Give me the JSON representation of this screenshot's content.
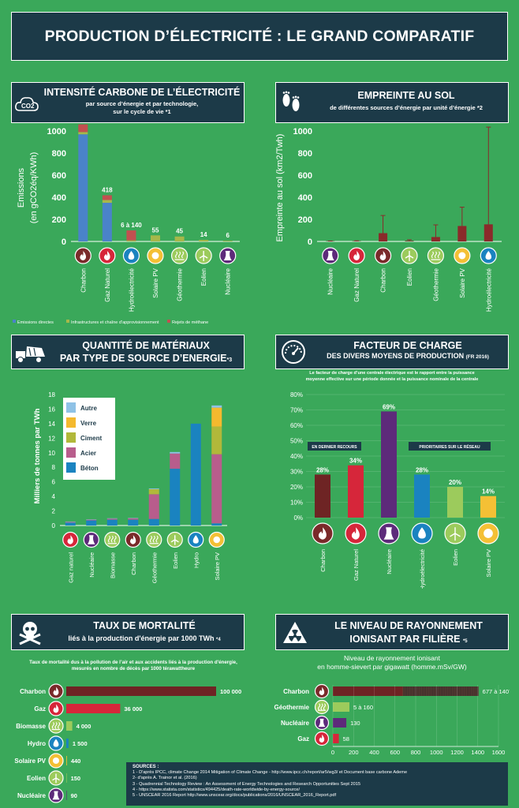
{
  "title": "PRODUCTION D’ÉLECTRICITÉ : LE GRAND COMPARATIF",
  "colors": {
    "background": "#3aa85a",
    "banner": "#1c3a48",
    "charbon": "#7a2a2a",
    "gaz": "#d6263a",
    "nucleaire": "#5d2a7a",
    "hydro": "#1a83c0",
    "solaire": "#f4c035",
    "eolien": "#9ccb5c",
    "geothermie": "#9ccb5c",
    "biomasse": "#9ccb5c"
  },
  "carbon": {
    "title": "INTENSITÉ CARBONE DE L’ÉLECTRICITÉ",
    "subtitle": "par source d’énergie et par technologie,",
    "subtitle2": "sur le cycle de vie *1",
    "icon": "co2-icon",
    "icon_text": "CO2",
    "ylabel": "Emissions",
    "ylabel2": "(en gCO2éq/KWh)",
    "legend": [
      "Emissions directes",
      "Infrastructures et chaîne d’approvisionnement",
      "Rejets de méthane"
    ]
  },
  "footprint": {
    "title": "EMPREINTE AU SOL",
    "subtitle": "de différentes sources d’énergie par unité d’énergie *2",
    "icon": "footprints-icon",
    "ylabel": "Empreinte au sol (km2/Twh)"
  },
  "materials": {
    "title": "QUANTITÉ DE MATÉRIAUX",
    "title2": "PAR TYPE DE SOURCE D’ENERGIE",
    "title_note": "*3",
    "icon": "concrete-mixer-icon",
    "ylabel": "Milliers de tonnes par TWh"
  },
  "capacity": {
    "title": "FACTEUR DE CHARGE",
    "title2": "DES DIVERS MOYENS DE PRODUCTION",
    "title_note": "(FR 2016)",
    "icon": "gauge-icon",
    "desc1": "Le facteur de charge d’une centrale électrique est le rapport entre la puissance",
    "desc2": "moyenne effective sur une période donnée et la puissance nominale de la centrale",
    "tag_left": "EN DERNIER RECOURS",
    "tag_right": "PRIORITAIRES SUR LE RÉSEAU"
  },
  "mortality": {
    "title": "TAUX DE MORTALITÉ",
    "subtitle": "liés à la production d'énergie par 1000 TWh",
    "subtitle_note": "*4",
    "icon": "skull-crossbones-icon",
    "desc1": "Taux de mortalité dus à la pollution de l’air et aux accidents liés à la production d'énergie,",
    "desc2": "mesurés en nombre de décès par 1000 térawattheure"
  },
  "radiation": {
    "title": "LE NIVEAU DE RAYONNEMENT",
    "title2": "IONISANT PAR FILIÈRE",
    "title_note": "*5",
    "icon": "radiation-icon",
    "chart_title": "Niveau de rayonnement ionisant",
    "chart_title2": "en homme-sievert par gigawatt (homme.mSv/GW)"
  },
  "sources": {
    "heading": "SOURCES :",
    "lines": [
      "1 - D'après IPCC, climate Change 2014   Mitigation of Climate Change - http://www.ipcc.ch/report/ar5/wg3/ et Document base carbone Ademe",
      "2- d'après A. Trainor et al. (2016)",
      "3 - Quadrennial Technology Review :  An Assessment of Energy Technologies and Research Opportunities Sept 2015",
      "4 - https://www.statista.com/statistics/494425/death-rate-worldwide-by-energy-source/",
      "5 - UNSCEAR 2016 Report http://www.unscear.org/docs/publications/2016/UNSCEAR_2016_Report.pdf"
    ]
  },
  "chart_data": [
    {
      "id": "carbon",
      "type": "bar",
      "stacked": true,
      "categories": [
        "Charbon",
        "Gaz Naturel",
        "Hydroélectricité",
        "Solaire PV",
        "Géothermie",
        "Eolien",
        "Nucléaire"
      ],
      "category_icons": [
        "flame-icon",
        "flame-icon",
        "water-drop-icon",
        "sun-icon",
        "geothermal-icon",
        "wind-turbine-icon",
        "nuclear-tower-icon"
      ],
      "series": [
        {
          "name": "Emissions directes",
          "color": "#4a83c9",
          "values": [
            970,
            350,
            0,
            0,
            0,
            0,
            0
          ]
        },
        {
          "name": "Infrastructures et chaîne d’approvisionnement",
          "color": "#a6b84a",
          "values": [
            20,
            25,
            10,
            55,
            45,
            14,
            6
          ]
        },
        {
          "name": "Rejets de méthane",
          "color": "#c25050",
          "values": [
            70,
            43,
            90,
            0,
            0,
            0,
            0
          ]
        }
      ],
      "data_labels": [
        "1060",
        "418",
        "6 à 140",
        "55",
        "45",
        "14",
        "6"
      ],
      "ylim": [
        0,
        1000
      ],
      "yticks": [
        "0",
        "200",
        "400",
        "600",
        "800",
        "1000"
      ]
    },
    {
      "id": "footprint",
      "type": "bar",
      "categories": [
        "Nucléaire",
        "Gaz Naturel",
        "Charbon",
        "Eolien",
        "Géothermie",
        "Solaire PV",
        "Hydroélectricité"
      ],
      "category_icons": [
        "nuclear-tower-icon",
        "flame-icon",
        "flame-icon",
        "wind-turbine-icon",
        "geothermal-icon",
        "sun-icon",
        "water-drop-icon"
      ],
      "values": [
        2,
        2,
        75,
        5,
        40,
        140,
        155
      ],
      "error_high": [
        4,
        6,
        235,
        15,
        150,
        310,
        1035
      ],
      "ylim": [
        0,
        1000
      ],
      "yticks": [
        "0",
        "200",
        "400",
        "600",
        "800",
        "1000"
      ],
      "bar_color": "#8a2a2a"
    },
    {
      "id": "materials",
      "type": "bar",
      "stacked": true,
      "categories": [
        "Gaz naturel",
        "Nucléaire",
        "Biomasse",
        "Charbon",
        "Géothermie",
        "Eolien",
        "Hydro",
        "Solaire PV"
      ],
      "category_icons": [
        "flame-icon",
        "nuclear-tower-icon",
        "geothermal-icon",
        "flame-icon",
        "geothermal-icon",
        "wind-turbine-icon",
        "water-drop-icon",
        "sun-icon"
      ],
      "series": [
        {
          "name": "Béton",
          "color": "#1a83c0",
          "values": [
            0.4,
            0.7,
            0.8,
            0.8,
            0.9,
            7.8,
            14.0,
            0.3
          ]
        },
        {
          "name": "Acier",
          "color": "#b85d8c",
          "values": [
            0.1,
            0.1,
            0.15,
            0.2,
            3.4,
            2.1,
            0.0,
            9.5
          ]
        },
        {
          "name": "Ciment",
          "color": "#b1b83a",
          "values": [
            0.0,
            0.0,
            0.0,
            0.0,
            0.7,
            0.0,
            0.0,
            3.8
          ]
        },
        {
          "name": "Verre",
          "color": "#f4b92e",
          "values": [
            0.0,
            0.0,
            0.0,
            0.0,
            0.0,
            0.0,
            0.0,
            2.6
          ]
        },
        {
          "name": "Autre",
          "color": "#8fc2e6",
          "values": [
            0.05,
            0.05,
            0.05,
            0.05,
            0.1,
            0.2,
            0.0,
            0.3
          ]
        }
      ],
      "legend_order": [
        "Autre",
        "Verre",
        "Ciment",
        "Acier",
        "Béton"
      ],
      "ylim": [
        0,
        18
      ],
      "yticks": [
        "0",
        "2",
        "4",
        "6",
        "8",
        "10",
        "12",
        "14",
        "16",
        "18"
      ]
    },
    {
      "id": "capacity",
      "type": "bar",
      "categories": [
        "Charbon",
        "Gaz Naturel",
        "Nucléaire",
        "Hydroélectricité",
        "Eolien",
        "Solaire PV"
      ],
      "category_icons": [
        "flame-icon",
        "flame-icon",
        "nuclear-tower-icon",
        "water-drop-icon",
        "wind-turbine-icon",
        "sun-icon"
      ],
      "values": [
        28,
        34,
        69,
        28,
        20,
        14
      ],
      "data_labels": [
        "28%",
        "34%",
        "69%",
        "28%",
        "20%",
        "14%"
      ],
      "colors": [
        "#6e2424",
        "#d6263a",
        "#5d2a7a",
        "#1a83c0",
        "#9ccb5c",
        "#f4c035"
      ],
      "ylim": [
        0,
        80
      ],
      "yticks": [
        "0%",
        "10%",
        "20%",
        "30%",
        "40%",
        "50%",
        "60%",
        "70%",
        "80%"
      ]
    },
    {
      "id": "mortality",
      "type": "bar",
      "orientation": "horizontal",
      "categories": [
        "Charbon",
        "Gaz",
        "Biomasse",
        "Hydro",
        "Solaire PV",
        "Eolien",
        "Nucléaire"
      ],
      "category_icons": [
        "flame-icon",
        "flame-icon",
        "geothermal-icon",
        "water-drop-icon",
        "sun-icon",
        "wind-turbine-icon",
        "nuclear-tower-icon"
      ],
      "values": [
        100000,
        36000,
        4000,
        1500,
        440,
        150,
        90
      ],
      "data_labels": [
        "100 000",
        "36 000",
        "4 000",
        "1 500",
        "440",
        "150",
        "90"
      ],
      "colors": [
        "#6e2424",
        "#d6263a",
        "#9ccb5c",
        "#1a83c0",
        "#f4c035",
        "#9ccb5c",
        "#5d2a7a"
      ],
      "xlim": [
        0,
        100000
      ]
    },
    {
      "id": "radiation",
      "type": "bar",
      "orientation": "horizontal",
      "categories": [
        "Charbon",
        "Géothermie",
        "Nucléaire",
        "Gaz"
      ],
      "category_icons": [
        "flame-icon",
        "geothermal-icon",
        "nuclear-tower-icon",
        "flame-icon"
      ],
      "values": [
        677,
        160,
        130,
        58
      ],
      "range_low": [
        677,
        5,
        130,
        58
      ],
      "range_high": [
        1407,
        160,
        130,
        58
      ],
      "data_labels": [
        "677 à 1407",
        "5 à 160",
        "130",
        "58"
      ],
      "colors": [
        "#6e2424",
        "#9ccb5c",
        "#5d2a7a",
        "#d6263a"
      ],
      "xlim": [
        0,
        1600
      ],
      "xticks": [
        "0",
        "200",
        "400",
        "600",
        "800",
        "1000",
        "1200",
        "1400",
        "1600"
      ]
    }
  ]
}
